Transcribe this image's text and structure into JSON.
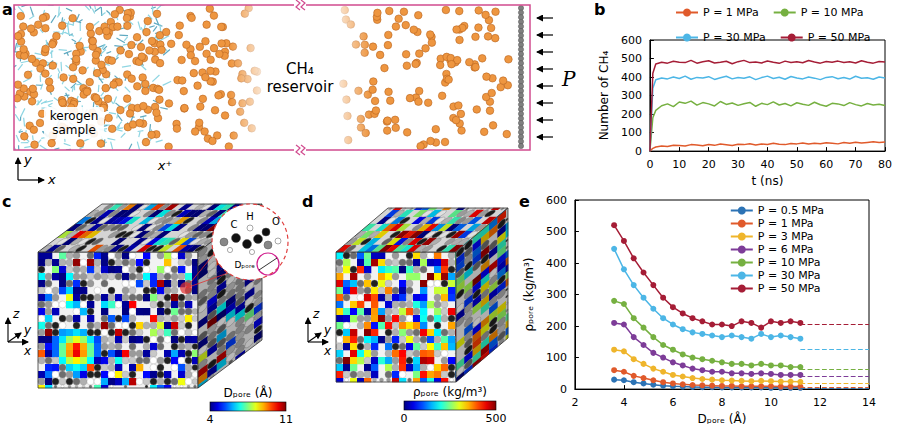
{
  "chart_data": [
    {
      "panel_label": "b",
      "type": "line",
      "x_label": "t (ns)",
      "y_label": "Number of CH₄",
      "x": [
        0,
        1,
        2,
        4,
        6,
        8,
        10,
        12,
        14,
        16,
        18,
        20,
        22,
        24,
        26,
        28,
        30,
        32,
        34,
        36,
        38,
        40,
        42,
        44,
        46,
        48,
        50,
        52,
        54,
        56,
        58,
        60,
        62,
        64,
        66,
        68,
        70,
        72,
        74,
        76,
        78,
        80
      ],
      "series": [
        {
          "name": "P = 1 MPa",
          "color": "#e05a2b",
          "values": [
            0,
            15,
            22,
            28,
            25,
            32,
            30,
            27,
            35,
            33,
            29,
            36,
            31,
            38,
            34,
            30,
            37,
            35,
            40,
            33,
            38,
            36,
            42,
            37,
            35,
            41,
            39,
            44,
            38,
            42,
            40,
            45,
            43,
            39,
            46,
            42,
            48,
            44,
            47,
            50,
            46,
            49
          ]
        },
        {
          "name": "P = 10 MPa",
          "color": "#76b041",
          "values": [
            0,
            180,
            220,
            245,
            255,
            240,
            265,
            258,
            270,
            248,
            262,
            255,
            244,
            268,
            252,
            260,
            247,
            256,
            263,
            242,
            258,
            251,
            266,
            249,
            257,
            244,
            261,
            253,
            247,
            264,
            250,
            242,
            258,
            255,
            246,
            262,
            251,
            244,
            257,
            249,
            253,
            246
          ]
        },
        {
          "name": "P = 30 MPa",
          "color": "#4cb6e6",
          "values": [
            0,
            340,
            385,
            395,
            390,
            400,
            392,
            405,
            388,
            398,
            395,
            402,
            387,
            396,
            404,
            390,
            398,
            393,
            401,
            386,
            397,
            405,
            392,
            399,
            388,
            403,
            395,
            390,
            400,
            394,
            386,
            398,
            402,
            391,
            397,
            389,
            404,
            393,
            396,
            388,
            400,
            395
          ]
        },
        {
          "name": "P = 50 MPa",
          "color": "#a51d36",
          "values": [
            0,
            420,
            470,
            480,
            475,
            485,
            480,
            478,
            490,
            475,
            482,
            488,
            476,
            480,
            485,
            472,
            483,
            490,
            478,
            481,
            476,
            487,
            480,
            474,
            486,
            479,
            483,
            477,
            489,
            481,
            475,
            484,
            480,
            486,
            478,
            482,
            476,
            488,
            480,
            475,
            484,
            481
          ]
        }
      ],
      "xlim": [
        0,
        80
      ],
      "xticks": [
        0,
        10,
        20,
        30,
        40,
        50,
        60,
        70,
        80
      ],
      "ylim": [
        0,
        600
      ],
      "yticks": [
        0,
        100,
        200,
        300,
        400,
        500,
        600
      ],
      "legend": "top",
      "grid": false
    },
    {
      "panel_label": "e",
      "type": "line",
      "marker": "circle",
      "x_label": "Dₚₒᵣₑ (Å)",
      "y_label": "ρₚₒᵣₑ (kg/m³)",
      "x": [
        3.6,
        4.0,
        4.4,
        4.8,
        5.2,
        5.6,
        6.0,
        6.4,
        6.8,
        7.2,
        7.6,
        8.0,
        8.4,
        8.8,
        9.2,
        9.6,
        10.0,
        10.4,
        10.8,
        11.2
      ],
      "series": [
        {
          "name": "P = 0.5 MPa",
          "color": "#2c73b5",
          "values": [
            30,
            28,
            22,
            18,
            14,
            11,
            9,
            8,
            7,
            6,
            6,
            5,
            5,
            5,
            5,
            5,
            4,
            4,
            4,
            4
          ],
          "bulk_density": 3
        },
        {
          "name": "P = 1 MPa",
          "color": "#e05a2b",
          "values": [
            60,
            55,
            42,
            35,
            28,
            22,
            18,
            15,
            13,
            12,
            11,
            10,
            10,
            9,
            9,
            9,
            9,
            8,
            8,
            8
          ],
          "bulk_density": 7
        },
        {
          "name": "P = 3 MPa",
          "color": "#efb52b",
          "values": [
            125,
            120,
            95,
            80,
            65,
            55,
            45,
            40,
            35,
            32,
            30,
            28,
            27,
            26,
            25,
            26,
            25,
            24,
            24,
            23
          ],
          "bulk_density": 20
        },
        {
          "name": "P = 6 MPa",
          "color": "#7d3c98",
          "values": [
            210,
            205,
            165,
            140,
            115,
            100,
            85,
            75,
            65,
            60,
            55,
            55,
            50,
            50,
            48,
            50,
            48,
            45,
            45,
            45
          ],
          "bulk_density": 40
        },
        {
          "name": "P = 10 MPa",
          "color": "#76b041",
          "values": [
            280,
            270,
            225,
            195,
            165,
            140,
            125,
            110,
            100,
            95,
            90,
            85,
            80,
            80,
            75,
            80,
            75,
            75,
            70,
            70
          ],
          "bulk_density": 62
        },
        {
          "name": "P = 30 MPa",
          "color": "#4cb6e6",
          "values": [
            445,
            380,
            330,
            290,
            255,
            225,
            205,
            190,
            180,
            175,
            170,
            165,
            170,
            165,
            160,
            175,
            165,
            170,
            165,
            160
          ],
          "bulk_density": 128
        },
        {
          "name": "P = 50 MPa",
          "color": "#a51d36",
          "values": [
            520,
            470,
            415,
            370,
            330,
            290,
            260,
            240,
            225,
            215,
            205,
            205,
            200,
            215,
            210,
            195,
            215,
            210,
            215,
            210
          ],
          "bulk_density": 205
        }
      ],
      "xlim": [
        2,
        14
      ],
      "xticks": [
        2,
        4,
        6,
        8,
        10,
        12,
        14
      ],
      "ylim": [
        0,
        600
      ],
      "yticks": [
        0,
        100,
        200,
        300,
        400,
        500,
        600
      ],
      "legend": "upper right",
      "grid": false
    }
  ],
  "diagrams": {
    "a": {
      "panel_label": "a",
      "sample_label": [
        "kerogen",
        "sample"
      ],
      "reservoir_label": [
        "CH₄",
        "reservoir"
      ],
      "pressure_label": "P",
      "axes": [
        "x",
        "y"
      ],
      "boundary_label": "x⁺"
    },
    "c": {
      "panel_label": "c",
      "axes": [
        "x",
        "y",
        "z"
      ],
      "colorbar": {
        "label": "Dₚₒᵣₑ (Å)",
        "range": [
          4,
          11
        ],
        "ticks": [
          4,
          11
        ]
      },
      "inset": {
        "atoms": [
          "C",
          "H",
          "O"
        ],
        "label": "Dₚₒᵣₑ"
      }
    },
    "d": {
      "panel_label": "d",
      "axes": [
        "x",
        "y",
        "z"
      ],
      "colorbar": {
        "label": "ρₚₒᵣₑ (kg/m³)",
        "range": [
          0,
          500
        ],
        "ticks": [
          0,
          500
        ]
      }
    }
  }
}
